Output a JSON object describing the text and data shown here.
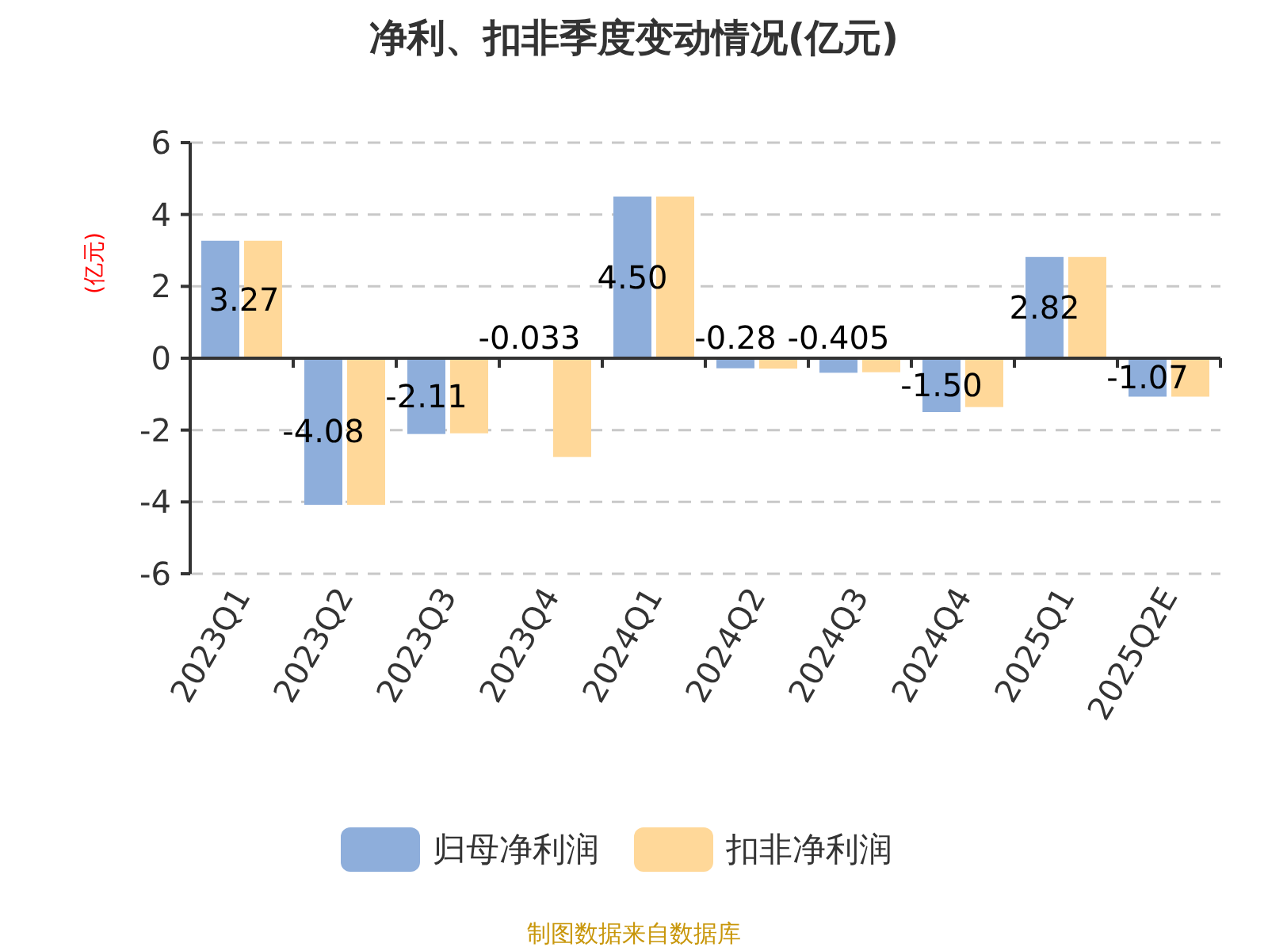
{
  "chart_data": {
    "type": "bar",
    "title": "净利、扣非季度变动情况(亿元)",
    "ylabel": "(亿元)",
    "categories": [
      "2023Q1",
      "2023Q2",
      "2023Q3",
      "2023Q4",
      "2024Q1",
      "2024Q2",
      "2024Q3",
      "2024Q4",
      "2025Q1",
      "2025Q2E"
    ],
    "series": [
      {
        "name": "归母净利润",
        "color": "#8eaedb",
        "values": [
          3.27,
          -4.08,
          -2.11,
          -0.033,
          4.5,
          -0.28,
          -0.405,
          -1.5,
          2.82,
          -1.07
        ],
        "value_labels": [
          "3.27",
          "-4.08",
          "-2.11",
          "-0.033",
          "4.50",
          "-0.28",
          "-0.405",
          "-1.50",
          "2.82",
          "-1.07"
        ]
      },
      {
        "name": "扣非净利润",
        "color": "#ffd899",
        "values": [
          3.27,
          -4.08,
          -2.09,
          -2.75,
          4.5,
          -0.29,
          -0.39,
          -1.36,
          2.82,
          -1.07
        ]
      }
    ],
    "ylim": [
      -6,
      6
    ],
    "yticks": [
      -6,
      -4,
      -2,
      0,
      2,
      4,
      6
    ],
    "grid": "y",
    "legend": "bottom",
    "annotations": [
      "制图数据来自数据库"
    ]
  }
}
